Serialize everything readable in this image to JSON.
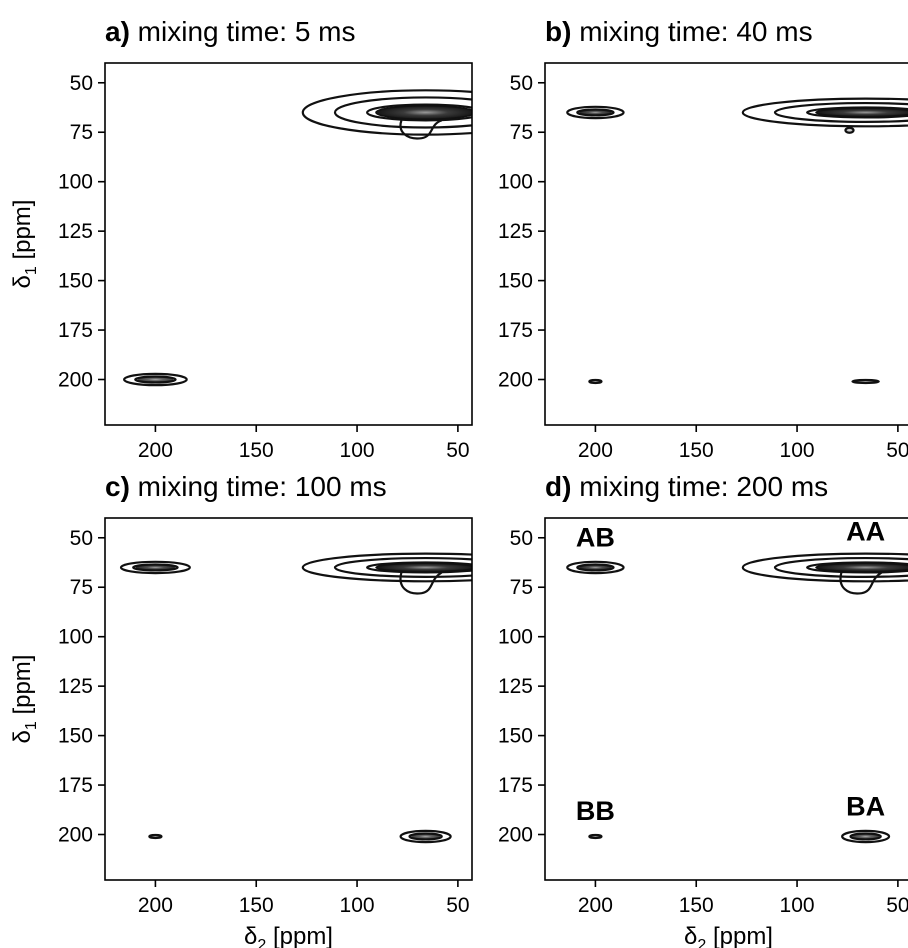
{
  "chart_data": [
    {
      "type": "contour",
      "title_letter": "a)",
      "title": "mixing time: 5 ms",
      "xlabel": "",
      "ylabel": "δ1 [ppm]",
      "xlim": [
        225,
        43
      ],
      "ylim": [
        40,
        223
      ],
      "xticks": [
        200,
        150,
        100,
        50
      ],
      "yticks": [
        50,
        75,
        100,
        125,
        150,
        175,
        200
      ],
      "peaks": [
        {
          "label": "",
          "x": 200,
          "y": 200,
          "width": 20,
          "height": 3,
          "intensity": 0.8,
          "contours": 2
        },
        {
          "label": "",
          "x": 66,
          "y": 65,
          "width": 58,
          "height": 8,
          "intensity": 1.0,
          "contours": 3,
          "tail": true
        }
      ]
    },
    {
      "type": "contour",
      "title_letter": "b)",
      "title": "mixing time: 40 ms",
      "xlabel": "",
      "ylabel": "",
      "xlim": [
        225,
        43
      ],
      "ylim": [
        40,
        223
      ],
      "xticks": [
        200,
        150,
        100,
        50
      ],
      "yticks": [
        50,
        75,
        100,
        125,
        150,
        175,
        200
      ],
      "peaks": [
        {
          "label": "",
          "x": 200,
          "y": 65,
          "width": 18,
          "height": 3,
          "intensity": 0.9,
          "contours": 2
        },
        {
          "label": "",
          "x": 66,
          "y": 65,
          "width": 58,
          "height": 5,
          "intensity": 1.0,
          "contours": 3
        },
        {
          "label": "",
          "x": 74,
          "y": 74,
          "width": 4,
          "height": 2.5,
          "intensity": 0.3,
          "contours": 1
        },
        {
          "label": "",
          "x": 200,
          "y": 201,
          "width": 6,
          "height": 1.5,
          "intensity": 0.6,
          "contours": 1
        },
        {
          "label": "",
          "x": 66,
          "y": 201,
          "width": 13,
          "height": 1.5,
          "intensity": 0.6,
          "contours": 1
        }
      ]
    },
    {
      "type": "contour",
      "title_letter": "c)",
      "title": "mixing time: 100 ms",
      "xlabel": "δ2 [ppm]",
      "ylabel": "δ1 [ppm]",
      "xlim": [
        225,
        43
      ],
      "ylim": [
        40,
        223
      ],
      "xticks": [
        200,
        150,
        100,
        50
      ],
      "yticks": [
        50,
        75,
        100,
        125,
        150,
        175,
        200
      ],
      "peaks": [
        {
          "label": "",
          "x": 200,
          "y": 65,
          "width": 22,
          "height": 3,
          "intensity": 0.9,
          "contours": 2
        },
        {
          "label": "",
          "x": 66,
          "y": 65,
          "width": 58,
          "height": 5,
          "intensity": 1.0,
          "contours": 3,
          "tail": true
        },
        {
          "label": "",
          "x": 200,
          "y": 201,
          "width": 6,
          "height": 1.5,
          "intensity": 0.6,
          "contours": 1
        },
        {
          "label": "",
          "x": 66,
          "y": 201,
          "width": 16,
          "height": 3,
          "intensity": 0.8,
          "contours": 2
        }
      ]
    },
    {
      "type": "contour",
      "title_letter": "d)",
      "title": "mixing time: 200 ms",
      "xlabel": "δ2 [ppm]",
      "ylabel": "",
      "xlim": [
        225,
        43
      ],
      "ylim": [
        40,
        223
      ],
      "xticks": [
        200,
        150,
        100,
        50
      ],
      "yticks": [
        50,
        75,
        100,
        125,
        150,
        175,
        200
      ],
      "peaks": [
        {
          "label": "AB",
          "x": 200,
          "y": 65,
          "width": 18,
          "height": 3,
          "intensity": 0.9,
          "contours": 2
        },
        {
          "label": "AA",
          "x": 66,
          "y": 65,
          "width": 58,
          "height": 5,
          "intensity": 1.0,
          "contours": 3,
          "tail": true
        },
        {
          "label": "BB",
          "x": 200,
          "y": 201,
          "width": 6,
          "height": 1.5,
          "intensity": 0.6,
          "contours": 1
        },
        {
          "label": "BA",
          "x": 66,
          "y": 201,
          "width": 15,
          "height": 3,
          "intensity": 0.8,
          "contours": 2
        }
      ]
    }
  ]
}
